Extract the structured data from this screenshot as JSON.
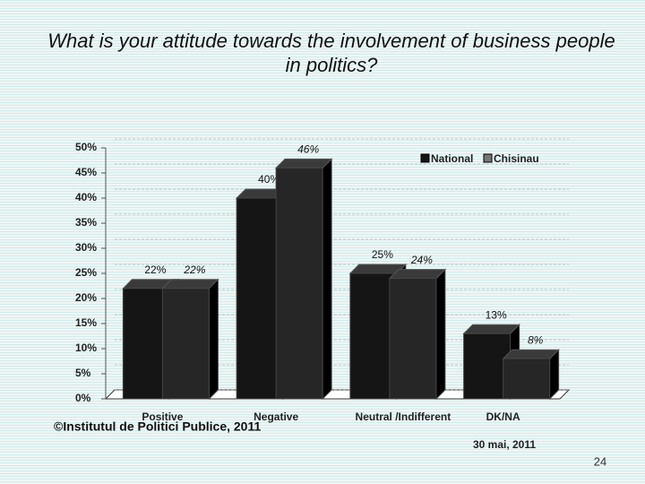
{
  "chart_data": {
    "type": "bar3d",
    "title": "What is your attitude towards the involvement of business people in politics?",
    "categories": [
      "Positive",
      "Negative",
      "Neutral /Indifferent",
      "DK/NA"
    ],
    "series": [
      {
        "name": "National",
        "color": "#151515",
        "values": [
          22,
          40,
          25,
          13
        ],
        "value_labels": [
          "22%",
          "40%",
          "25%",
          "13%"
        ]
      },
      {
        "name": "Chisinau",
        "color": "#262626",
        "values": [
          22,
          46,
          24,
          8
        ],
        "value_labels": [
          "22%",
          "46%",
          "24%",
          "8%"
        ]
      }
    ],
    "ylim": [
      0,
      50
    ],
    "yticks": [
      {
        "value": 0,
        "label": "0%"
      },
      {
        "value": 5,
        "label": "5%"
      },
      {
        "value": 10,
        "label": "10%"
      },
      {
        "value": 15,
        "label": "15%"
      },
      {
        "value": 20,
        "label": "20%"
      },
      {
        "value": 25,
        "label": "25%"
      },
      {
        "value": 30,
        "label": "30%"
      },
      {
        "value": 35,
        "label": "35%"
      },
      {
        "value": 40,
        "label": "40%"
      },
      {
        "value": 45,
        "label": "45%"
      },
      {
        "value": 50,
        "label": "50%"
      }
    ],
    "grid": true,
    "legend": "top-right"
  },
  "footer": {
    "source": "©Institutul de Politici Publice, 2011",
    "date": "30 mai, 2011",
    "page": "24"
  }
}
